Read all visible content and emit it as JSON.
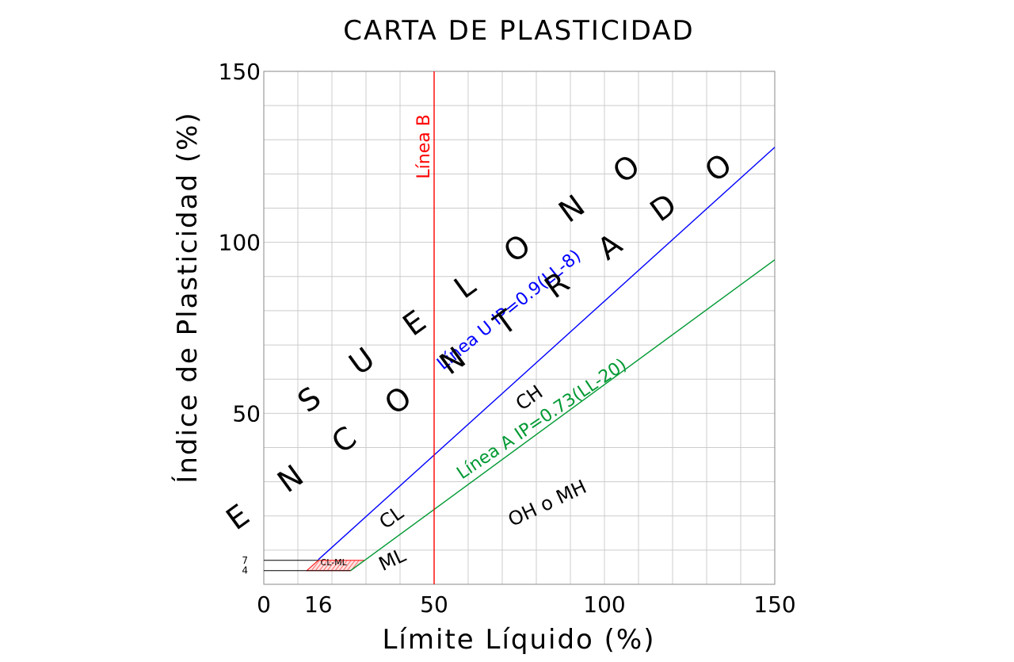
{
  "chart_data": {
    "type": "line",
    "title": "CARTA DE PLASTICIDAD",
    "xlabel": "Límite Líquido (%)",
    "ylabel": "Índice de Plasticidad (%)",
    "xlim": [
      0,
      150
    ],
    "ylim": [
      0,
      150
    ],
    "grid": true,
    "x_ticks": [
      "0",
      "16",
      "50",
      "100",
      "150"
    ],
    "x_tick_values": [
      0,
      16,
      50,
      100,
      150
    ],
    "y_ticks": [
      "50",
      "100",
      "150"
    ],
    "y_tick_values": [
      50,
      100,
      150
    ],
    "y_small_ticks": [
      "4",
      "7"
    ],
    "y_small_tick_values": [
      4,
      7
    ],
    "series": [
      {
        "name": "Línea U IP=0.9(LL-8)",
        "color": "#0000ff",
        "x": [
          16,
          150
        ],
        "y": [
          7.2,
          127.8
        ]
      },
      {
        "name": "Línea A IP=0.73(LL-20)",
        "color": "#009933",
        "x": [
          25.5,
          150
        ],
        "y": [
          4,
          94.9
        ]
      },
      {
        "name": "Línea B",
        "color": "#ff0000",
        "x": [
          50,
          50
        ],
        "y": [
          0,
          150
        ]
      }
    ],
    "annotations": [
      {
        "text": "CH",
        "x": 79,
        "y": 53,
        "rotate": -35
      },
      {
        "text": "CL",
        "x": 38.5,
        "y": 18,
        "rotate": -35
      },
      {
        "text": "ML",
        "x": 38.5,
        "y": 5.5,
        "rotate": -25
      },
      {
        "text": "OH o MH",
        "x": 84,
        "y": 22,
        "rotate": -25
      },
      {
        "text": "CL-ML",
        "x": 20.5,
        "y": 5.6,
        "rotate": 0
      },
      {
        "text": "S U E L O   N O",
        "x": 64,
        "y": 87,
        "rotate": -36
      },
      {
        "text": "E N C O N T R A D O",
        "x": 67,
        "y": 70,
        "rotate": -36
      }
    ]
  }
}
